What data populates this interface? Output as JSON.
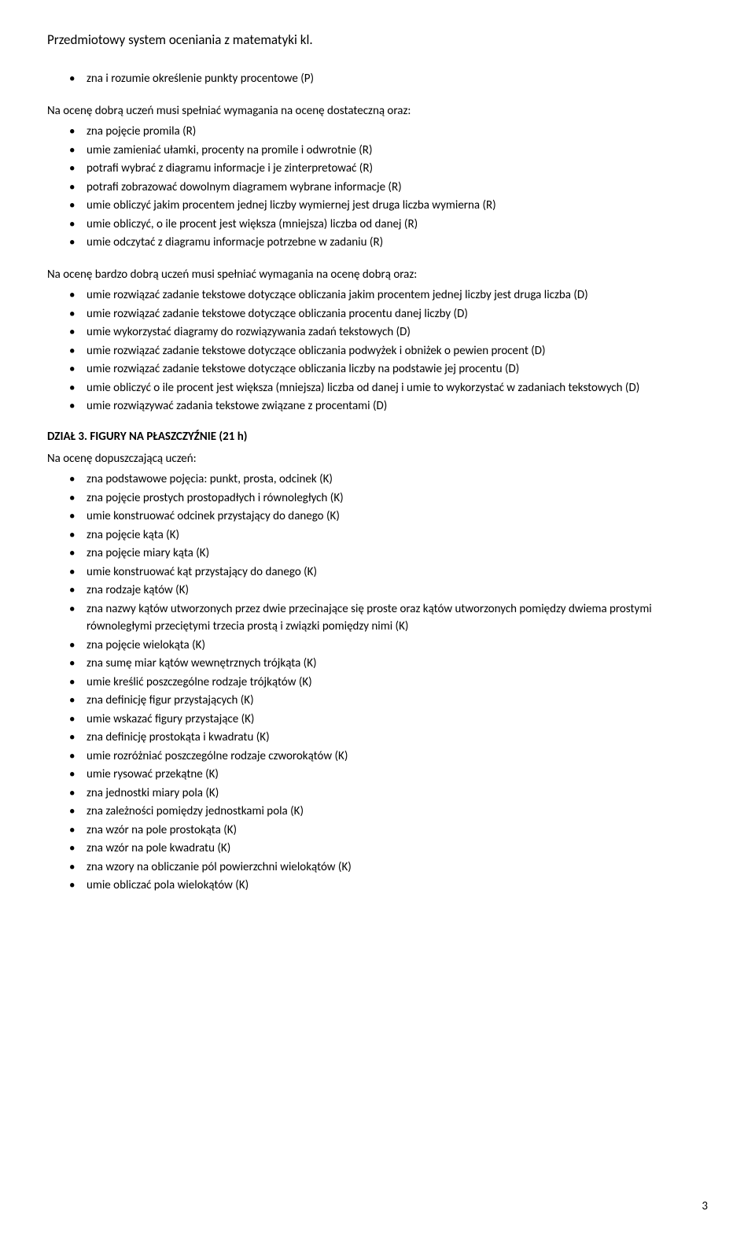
{
  "header": "Przedmiotowy system oceniania z matematyki kl.",
  "list1_intro_items": [
    "zna i rozumie określenie punkty procentowe (P)"
  ],
  "para1": "Na ocenę dobrą uczeń musi spełniać wymagania na ocenę dostateczną oraz:",
  "list1": [
    "zna pojęcie promila (R)",
    "umie zamieniać ułamki, procenty na promile i odwrotnie (R)",
    "potrafi wybrać z diagramu informacje i je zinterpretować (R)",
    "potrafi zobrazować dowolnym diagramem wybrane informacje (R)",
    "umie obliczyć jakim procentem jednej liczby wymiernej jest druga liczba wymierna (R)",
    "umie obliczyć, o ile procent jest większa (mniejsza) liczba od danej (R)",
    "umie odczytać z diagramu informacje potrzebne w zadaniu (R)"
  ],
  "para2": "Na ocenę bardzo dobrą uczeń musi spełniać wymagania na ocenę dobrą oraz:",
  "list2": [
    "umie rozwiązać zadanie tekstowe dotyczące obliczania jakim procentem jednej liczby jest druga liczba (D)",
    "umie rozwiązać zadanie tekstowe dotyczące obliczania procentu danej liczby (D)",
    "umie wykorzystać diagramy do rozwiązywania zadań tekstowych (D)",
    "umie rozwiązać zadanie tekstowe dotyczące obliczania podwyżek i obniżek o pewien procent (D)",
    "umie rozwiązać zadanie tekstowe dotyczące obliczania liczby na podstawie jej procentu (D)",
    "umie obliczyć o ile procent jest większa (mniejsza) liczba od danej i umie to wykorzystać w zadaniach tekstowych (D)",
    "umie rozwiązywać zadania tekstowe związane z procentami (D)"
  ],
  "section_title": "DZIAŁ 3. FIGURY NA PŁASZCZYŹNIE (21 h)",
  "para3": "Na ocenę dopuszczającą uczeń:",
  "list3": [
    "zna podstawowe pojęcia: punkt, prosta, odcinek (K)",
    "zna pojęcie prostych prostopadłych i równoległych (K)",
    "umie konstruować odcinek przystający do danego (K)",
    "zna pojęcie kąta (K)",
    "zna pojęcie miary kąta (K)",
    "umie konstruować kąt przystający do danego (K)",
    "zna rodzaje kątów (K)",
    "zna nazwy kątów utworzonych przez dwie przecinające się proste oraz kątów utworzonych pomiędzy dwiema prostymi równoległymi przeciętymi trzecia prostą i związki pomiędzy nimi (K)",
    "zna pojęcie wielokąta (K)",
    "zna sumę miar kątów wewnętrznych trójkąta (K)",
    "umie kreślić poszczególne rodzaje trójkątów (K)",
    "zna definicję figur przystających (K)",
    "umie wskazać figury przystające (K)",
    "zna definicję prostokąta i kwadratu (K)",
    "umie rozróżniać poszczególne rodzaje czworokątów (K)",
    "umie rysować przekątne (K)",
    "zna jednostki miary pola (K)",
    "zna zależności pomiędzy jednostkami pola (K)",
    "zna wzór na pole prostokąta (K)",
    "zna wzór na pole kwadratu (K)",
    "zna wzory na obliczanie pól powierzchni wielokątów (K)",
    "umie obliczać pola wielokątów (K)"
  ],
  "page_number": "3"
}
